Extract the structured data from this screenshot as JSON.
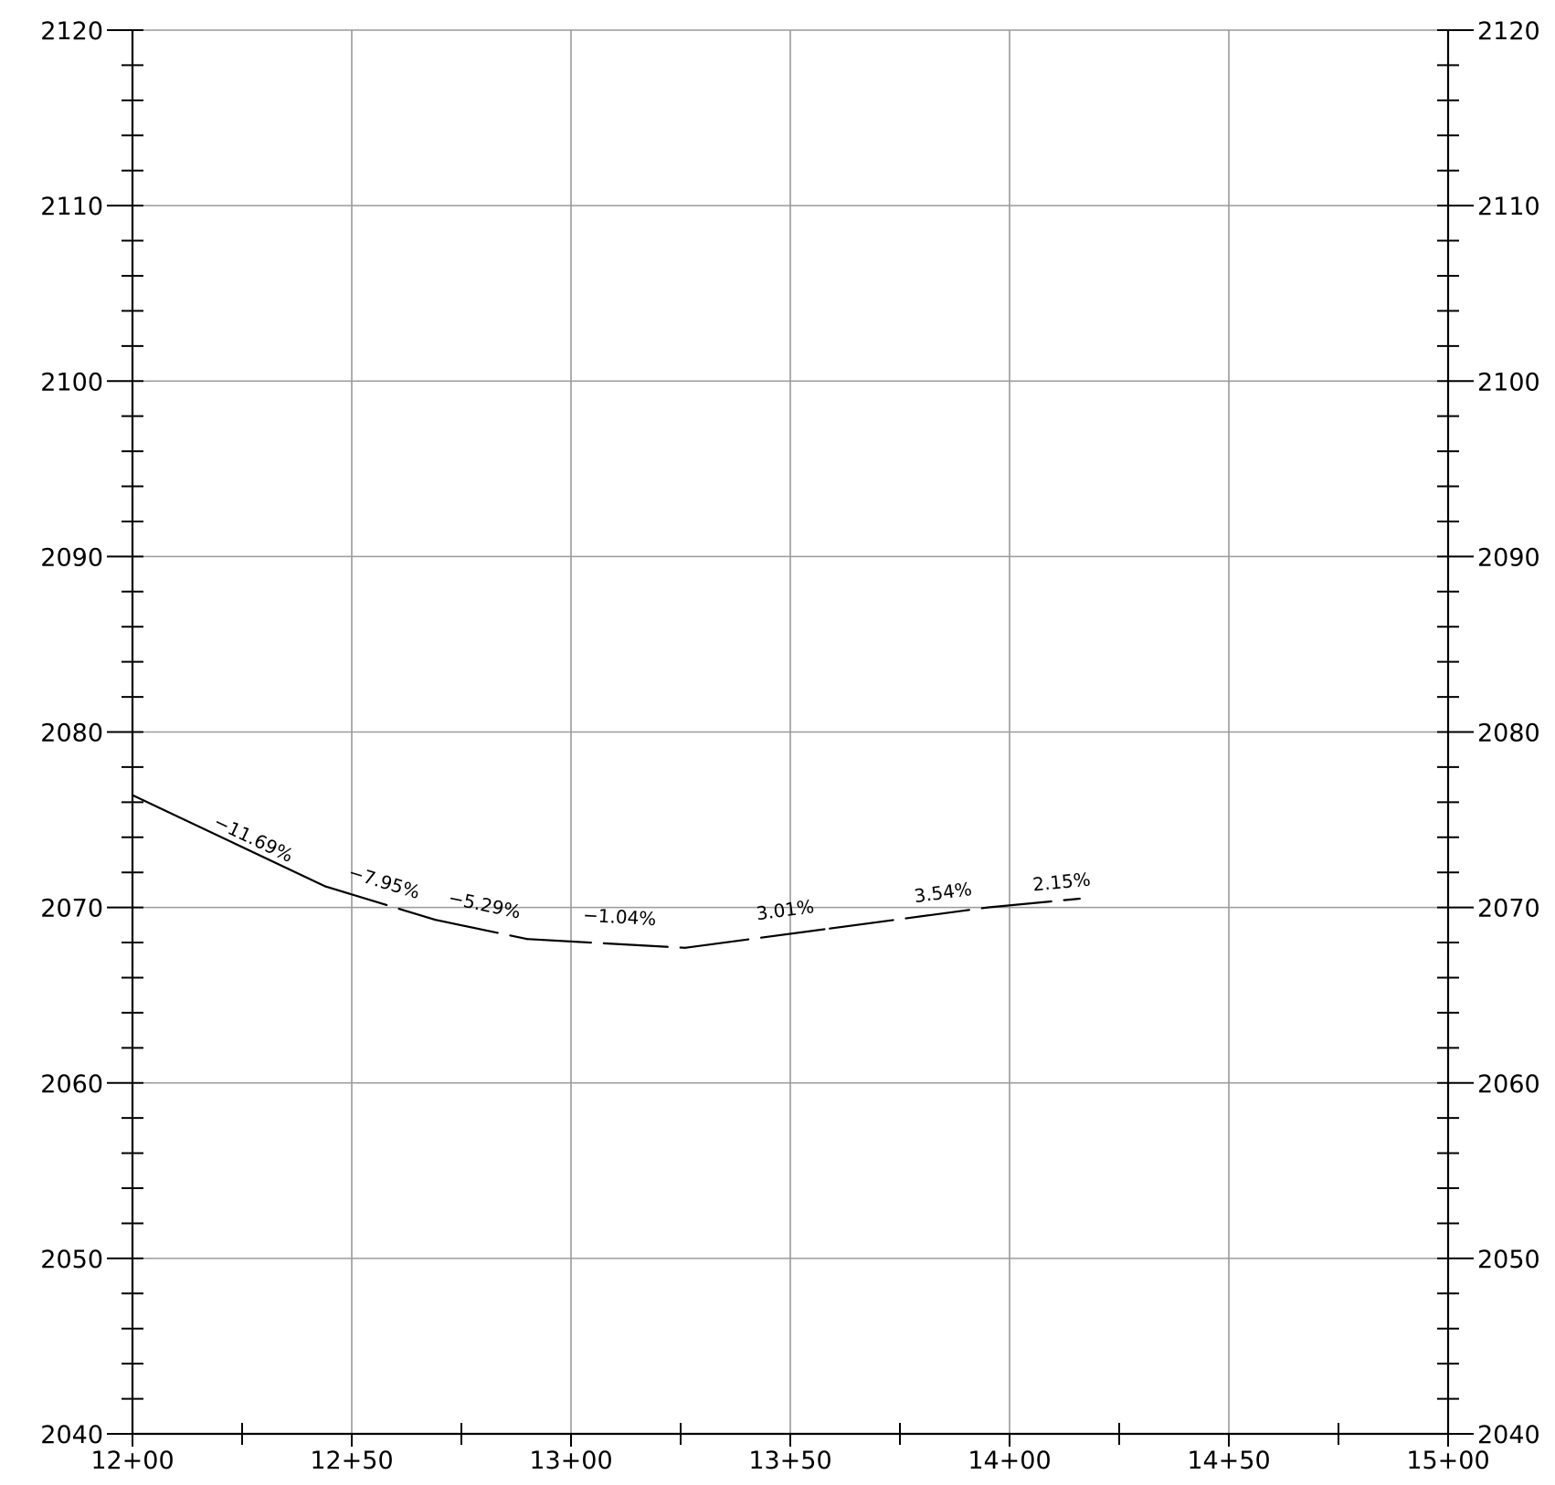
{
  "chart_data": {
    "type": "line",
    "title": "",
    "xlabel": "",
    "ylabel": "",
    "xlim": [
      1200,
      1500
    ],
    "ylim": [
      2040,
      2120
    ],
    "grid": true,
    "x_ticks": [
      {
        "value": 1200,
        "label": "12+00"
      },
      {
        "value": 1250,
        "label": "12+50"
      },
      {
        "value": 1300,
        "label": "13+00"
      },
      {
        "value": 1350,
        "label": "13+50"
      },
      {
        "value": 1400,
        "label": "14+00"
      },
      {
        "value": 1450,
        "label": "14+50"
      },
      {
        "value": 1500,
        "label": "15+00"
      }
    ],
    "x_minor_ticks": [
      1225,
      1275,
      1325,
      1375,
      1425,
      1475
    ],
    "y_ticks": [
      {
        "value": 2040,
        "label": "2040"
      },
      {
        "value": 2050,
        "label": "2050"
      },
      {
        "value": 2060,
        "label": "2060"
      },
      {
        "value": 2070,
        "label": "2070"
      },
      {
        "value": 2080,
        "label": "2080"
      },
      {
        "value": 2090,
        "label": "2090"
      },
      {
        "value": 2100,
        "label": "2100"
      },
      {
        "value": 2110,
        "label": "2110"
      },
      {
        "value": 2120,
        "label": "2120"
      }
    ],
    "y_minor_step": 2,
    "series": [
      {
        "x": [
          1200,
          1244,
          1269,
          1290,
          1326,
          1359,
          1395,
          1416
        ],
        "y": [
          2076.4,
          2071.2,
          2069.3,
          2068.2,
          2067.7,
          2068.8,
          2070.0,
          2070.5
        ]
      }
    ],
    "segment_labels": [
      {
        "text": "−11.69%",
        "x": 1227,
        "y": 2073.6
      },
      {
        "text": "−7.95%",
        "x": 1257,
        "y": 2071.1
      },
      {
        "text": "−5.29%",
        "x": 1280,
        "y": 2069.8
      },
      {
        "text": "−1.04%",
        "x": 1311,
        "y": 2069.1
      },
      {
        "text": "3.01%",
        "x": 1349,
        "y": 2069.5
      },
      {
        "text": "3.54%",
        "x": 1385,
        "y": 2070.5
      },
      {
        "text": "2.15%",
        "x": 1412,
        "y": 2071.1
      }
    ]
  }
}
